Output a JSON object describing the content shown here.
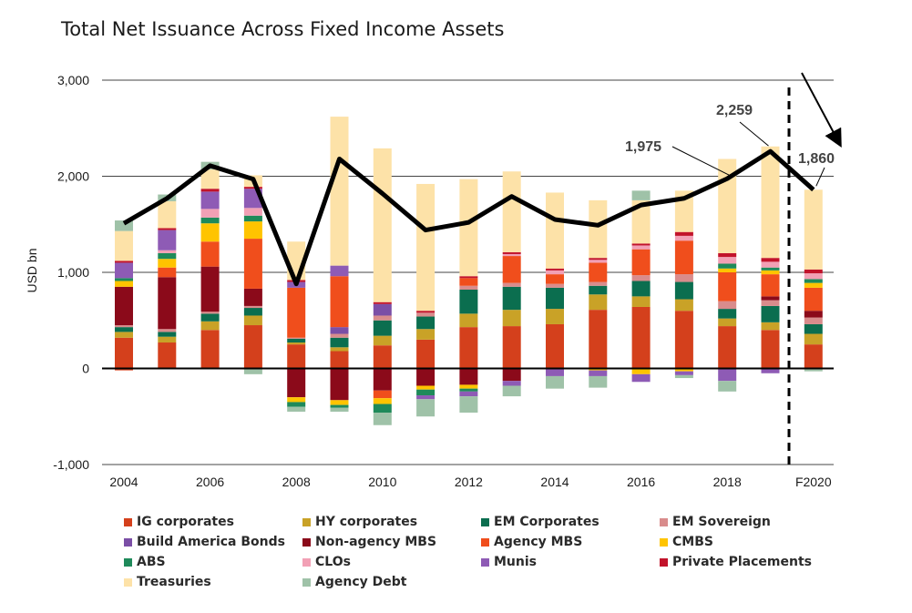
{
  "title": "Total Net Issuance Across Fixed Income Assets",
  "chart_data": {
    "type": "bar",
    "stacked": true,
    "title": "Total Net Issuance Across Fixed Income Assets",
    "ylabel": "USD bn",
    "xlabel": "",
    "ylim": [
      -1000,
      3000
    ],
    "yticks": [
      -1000,
      0,
      1000,
      2000,
      3000
    ],
    "ytick_labels": [
      "-1,000",
      "0",
      "1,000",
      "2,000",
      "3,000"
    ],
    "categories": [
      "2004",
      "2005",
      "2006",
      "2007",
      "2008",
      "2009",
      "2010",
      "2011",
      "2012",
      "2013",
      "2014",
      "2015",
      "2016",
      "2017",
      "2018",
      "2019",
      "F2020"
    ],
    "xtick_labels": [
      "2004",
      "",
      "2006",
      "",
      "2008",
      "",
      "2010",
      "",
      "2012",
      "",
      "2014",
      "",
      "2016",
      "",
      "2018",
      "",
      "F2020"
    ],
    "grid": "horizontal",
    "legend_position": "bottom",
    "series": [
      {
        "name": "IG corporates",
        "color": "#d4401c",
        "values": [
          320,
          270,
          400,
          450,
          250,
          180,
          240,
          300,
          430,
          440,
          460,
          610,
          640,
          600,
          440,
          400,
          250
        ]
      },
      {
        "name": "HY corporates",
        "color": "#c9a227",
        "values": [
          60,
          60,
          90,
          100,
          20,
          40,
          100,
          110,
          140,
          170,
          160,
          160,
          110,
          120,
          80,
          80,
          110
        ]
      },
      {
        "name": "EM Corporates",
        "color": "#0b6e4f",
        "values": [
          50,
          50,
          80,
          80,
          40,
          100,
          160,
          130,
          250,
          240,
          220,
          90,
          160,
          180,
          100,
          170,
          100
        ]
      },
      {
        "name": "EM Sovereign",
        "color": "#d98c8c",
        "values": [
          20,
          30,
          20,
          20,
          10,
          40,
          50,
          40,
          40,
          40,
          40,
          40,
          60,
          80,
          80,
          60,
          70
        ]
      },
      {
        "name": "Build America Bonds",
        "color": "#7b4fa6",
        "values": [
          0,
          0,
          0,
          0,
          0,
          70,
          120,
          0,
          0,
          0,
          0,
          0,
          0,
          0,
          0,
          0,
          0
        ]
      },
      {
        "name": "Non-agency MBS",
        "color": "#8b0a1a",
        "values": [
          400,
          540,
          470,
          180,
          0,
          0,
          0,
          0,
          0,
          0,
          0,
          0,
          0,
          0,
          0,
          40,
          70
        ]
      },
      {
        "name": "Agency MBS",
        "color": "#f04e1c",
        "values": [
          0,
          100,
          260,
          520,
          520,
          530,
          0,
          0,
          80,
          280,
          100,
          200,
          270,
          350,
          300,
          230,
          240
        ]
      },
      {
        "name": "CMBS",
        "color": "#ffc400",
        "values": [
          60,
          90,
          190,
          180,
          0,
          0,
          0,
          0,
          0,
          0,
          0,
          0,
          0,
          0,
          40,
          40,
          50
        ]
      },
      {
        "name": "ABS",
        "color": "#1f8a5a",
        "values": [
          30,
          60,
          60,
          60,
          0,
          0,
          0,
          0,
          0,
          0,
          0,
          0,
          0,
          0,
          50,
          30,
          40
        ]
      },
      {
        "name": "CLOs",
        "color": "#f2a0b5",
        "values": [
          0,
          30,
          90,
          80,
          0,
          0,
          0,
          0,
          0,
          20,
          40,
          30,
          40,
          50,
          70,
          60,
          60
        ]
      },
      {
        "name": "Munis",
        "color": "#8e5bb5",
        "values": [
          160,
          210,
          180,
          200,
          60,
          110,
          0,
          0,
          0,
          0,
          0,
          0,
          0,
          0,
          0,
          0,
          0
        ]
      },
      {
        "name": "Private Placements",
        "color": "#c2132b",
        "values": [
          20,
          20,
          30,
          20,
          20,
          0,
          20,
          20,
          20,
          20,
          20,
          20,
          20,
          40,
          40,
          40,
          40
        ]
      },
      {
        "name": "Treasuries",
        "color": "#fde2a8",
        "values": [
          310,
          280,
          200,
          120,
          400,
          1550,
          1600,
          1320,
          1010,
          840,
          790,
          600,
          450,
          430,
          980,
          1160,
          830
        ]
      },
      {
        "name": "Agency Debt",
        "color": "#9fc2a8",
        "values": [
          110,
          70,
          80,
          0,
          0,
          0,
          0,
          0,
          0,
          0,
          0,
          0,
          100,
          0,
          0,
          0,
          0
        ]
      }
    ],
    "negative_series": [
      {
        "name": "IG corporates",
        "values": [
          -20,
          0,
          0,
          0,
          0,
          0,
          0,
          0,
          0,
          0,
          0,
          0,
          0,
          0,
          0,
          0,
          0
        ]
      },
      {
        "name": "Non-agency MBS",
        "values": [
          0,
          0,
          0,
          0,
          -300,
          -330,
          -230,
          -180,
          -170,
          -130,
          0,
          0,
          0,
          0,
          0,
          0,
          0
        ]
      },
      {
        "name": "Agency MBS",
        "values": [
          0,
          0,
          0,
          0,
          0,
          0,
          -80,
          0,
          0,
          0,
          0,
          0,
          0,
          0,
          0,
          0,
          0
        ]
      },
      {
        "name": "CMBS",
        "values": [
          0,
          0,
          0,
          0,
          -50,
          -50,
          -60,
          -40,
          -40,
          0,
          0,
          -20,
          -60,
          -30,
          0,
          0,
          0
        ]
      },
      {
        "name": "ABS",
        "values": [
          0,
          0,
          0,
          0,
          -50,
          -30,
          -90,
          -60,
          -30,
          0,
          0,
          0,
          0,
          0,
          0,
          0,
          0
        ]
      },
      {
        "name": "Munis",
        "values": [
          0,
          0,
          0,
          0,
          0,
          0,
          0,
          -40,
          -50,
          -50,
          -80,
          -60,
          -80,
          -40,
          -130,
          -50,
          0
        ]
      },
      {
        "name": "Agency Debt",
        "values": [
          0,
          0,
          0,
          -60,
          -50,
          -40,
          -130,
          -180,
          -170,
          -110,
          -130,
          -120,
          0,
          -30,
          -110,
          0,
          -30
        ]
      }
    ],
    "total_line": {
      "name": "Total",
      "color": "#000000",
      "values": [
        1510,
        1770,
        2110,
        1970,
        880,
        2180,
        1820,
        1440,
        1520,
        1790,
        1550,
        1490,
        1700,
        1770,
        1975,
        2259,
        1860
      ]
    },
    "annotations": [
      {
        "label": "1,975",
        "category": "2018"
      },
      {
        "label": "2,259",
        "category": "2019"
      },
      {
        "label": "1,860",
        "category": "F2020"
      }
    ],
    "forecast_divider_after": "2019"
  }
}
